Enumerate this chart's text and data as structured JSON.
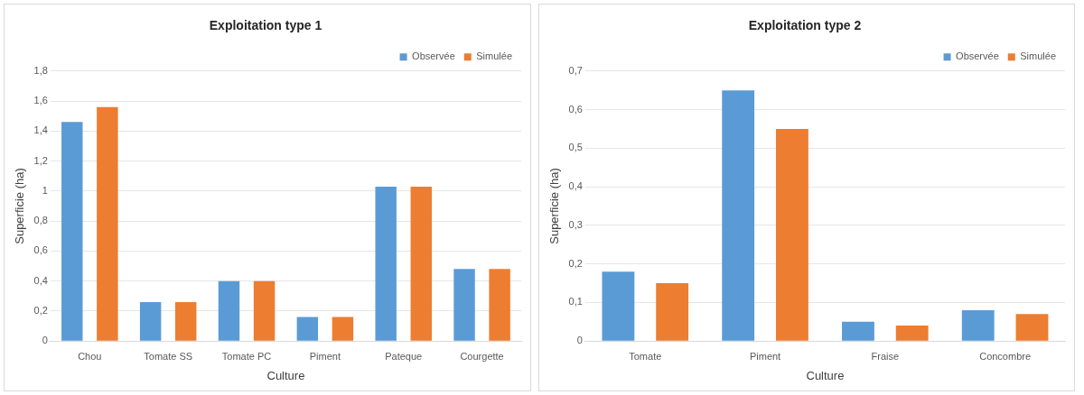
{
  "chart_data": [
    {
      "type": "bar",
      "title": "Exploitation type 1",
      "xlabel": "Culture",
      "ylabel": "Superficie (ha)",
      "categories": [
        "Chou",
        "Tomate SS",
        "Tomate PC",
        "Piment",
        "Pateque",
        "Courgette"
      ],
      "series": [
        {
          "name": "Observée",
          "color": "#5b9bd5",
          "values": [
            1.46,
            0.26,
            0.4,
            0.16,
            1.03,
            0.48
          ]
        },
        {
          "name": "Simulée",
          "color": "#ed7d31",
          "values": [
            1.56,
            0.26,
            0.4,
            0.16,
            1.03,
            0.48
          ]
        }
      ],
      "ylim": [
        0,
        1.8
      ],
      "yticks": [
        {
          "value": 0,
          "label": "0"
        },
        {
          "value": 0.2,
          "label": "0,2"
        },
        {
          "value": 0.4,
          "label": "0,4"
        },
        {
          "value": 0.6,
          "label": "0,6"
        },
        {
          "value": 0.8,
          "label": "0,8"
        },
        {
          "value": 1,
          "label": "1"
        },
        {
          "value": 1.2,
          "label": "1,2"
        },
        {
          "value": 1.4,
          "label": "1,4"
        },
        {
          "value": 1.6,
          "label": "1,6"
        },
        {
          "value": 1.8,
          "label": "1,8"
        }
      ],
      "grid": "y",
      "legend": "top right"
    },
    {
      "type": "bar",
      "title": "Exploitation type 2",
      "xlabel": "Culture",
      "ylabel": "Superficie (ha)",
      "categories": [
        "Tomate",
        "Piment",
        "Fraise",
        "Concombre"
      ],
      "series": [
        {
          "name": "Observée",
          "color": "#5b9bd5",
          "values": [
            0.18,
            0.65,
            0.05,
            0.08
          ]
        },
        {
          "name": "Simulée",
          "color": "#ed7d31",
          "values": [
            0.15,
            0.55,
            0.04,
            0.07
          ]
        }
      ],
      "ylim": [
        0,
        0.7
      ],
      "yticks": [
        {
          "value": 0,
          "label": "0"
        },
        {
          "value": 0.1,
          "label": "0,1"
        },
        {
          "value": 0.2,
          "label": "0,2"
        },
        {
          "value": 0.3,
          "label": "0,3"
        },
        {
          "value": 0.4,
          "label": "0,4"
        },
        {
          "value": 0.5,
          "label": "0,5"
        },
        {
          "value": 0.6,
          "label": "0,6"
        },
        {
          "value": 0.7,
          "label": "0,7"
        }
      ],
      "grid": "y",
      "legend": "top right"
    }
  ]
}
